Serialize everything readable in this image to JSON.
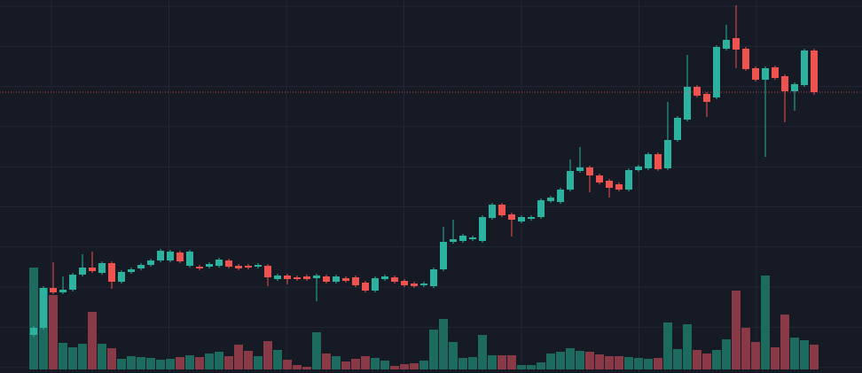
{
  "chart_data": {
    "type": "candlestick",
    "up_color": "#2bb39f",
    "down_color": "#ef5350",
    "volume_up_color": "#1d6b5f",
    "volume_down_color": "#8a3a47",
    "price_line_color": "#ef5350",
    "grid": true,
    "ylim": [
      0,
      421
    ],
    "volume_ylim": [
      0,
      417
    ],
    "price_line": 317,
    "open": [
      43,
      51,
      96,
      91,
      94,
      111,
      119,
      113,
      124,
      103,
      114,
      118,
      122,
      127,
      127,
      136,
      121,
      120,
      120,
      121,
      127,
      121,
      121,
      120,
      121,
      106,
      110,
      108,
      109,
      107,
      109,
      103,
      107,
      108,
      102,
      93,
      106,
      108,
      104,
      101,
      99,
      98,
      117,
      148,
      149,
      151,
      149,
      175,
      190,
      179,
      171,
      174,
      176,
      194,
      193,
      207,
      228,
      232,
      223,
      217,
      213,
      207,
      229,
      231,
      247,
      231,
      263,
      286,
      323,
      315,
      311,
      366,
      378,
      366,
      344,
      331,
      345,
      335,
      318,
      325,
      364
    ],
    "high": [
      53,
      98,
      125,
      109,
      113,
      134,
      137,
      126,
      126,
      116,
      119,
      124,
      129,
      140,
      139,
      138,
      139,
      122,
      125,
      130,
      129,
      123,
      123,
      124,
      123,
      112,
      112,
      110,
      111,
      112,
      111,
      111,
      109,
      110,
      104,
      109,
      111,
      110,
      106,
      103,
      103,
      119,
      165,
      173,
      157,
      155,
      178,
      192,
      192,
      181,
      178,
      178,
      197,
      200,
      209,
      241,
      255,
      234,
      225,
      219,
      215,
      231,
      235,
      249,
      249,
      306,
      290,
      359,
      325,
      317,
      370,
      393,
      415,
      368,
      346,
      346,
      347,
      337,
      328,
      366,
      366
    ],
    "low": [
      41,
      49,
      89,
      89,
      92,
      109,
      113,
      111,
      95,
      101,
      112,
      116,
      120,
      125,
      125,
      124,
      119,
      116,
      118,
      119,
      118,
      116,
      117,
      118,
      98,
      104,
      100,
      104,
      104,
      81,
      101,
      101,
      102,
      97,
      91,
      91,
      104,
      101,
      97,
      96,
      97,
      96,
      115,
      146,
      147,
      149,
      147,
      173,
      176,
      154,
      169,
      172,
      174,
      192,
      191,
      205,
      226,
      204,
      213,
      198,
      205,
      205,
      227,
      229,
      228,
      229,
      261,
      284,
      311,
      289,
      309,
      364,
      344,
      341,
      329,
      244,
      331,
      283,
      296,
      323,
      314
    ],
    "close": [
      51,
      96,
      91,
      94,
      111,
      119,
      115,
      124,
      103,
      114,
      117,
      122,
      127,
      138,
      137,
      126,
      137,
      118,
      123,
      128,
      120,
      118,
      119,
      122,
      108,
      110,
      106,
      106,
      106,
      110,
      103,
      109,
      104,
      99,
      93,
      107,
      109,
      103,
      99,
      98,
      101,
      117,
      148,
      151,
      155,
      153,
      176,
      190,
      178,
      173,
      176,
      176,
      195,
      198,
      207,
      228,
      232,
      223,
      215,
      209,
      207,
      229,
      233,
      247,
      230,
      263,
      288,
      323,
      313,
      306,
      368,
      376,
      365,
      343,
      331,
      344,
      333,
      318,
      326,
      364,
      317
    ],
    "volume": [
      115,
      92,
      84,
      30,
      25,
      29,
      65,
      29,
      24,
      12,
      15,
      14,
      13,
      11,
      12,
      14,
      16,
      14,
      18,
      20,
      15,
      28,
      21,
      15,
      32,
      22,
      11,
      5,
      3,
      42,
      18,
      15,
      9,
      12,
      15,
      13,
      10,
      4,
      6,
      7,
      10,
      45,
      57,
      31,
      13,
      14,
      39,
      16,
      16,
      16,
      5,
      5,
      8,
      18,
      20,
      24,
      21,
      20,
      17,
      15,
      15,
      14,
      13,
      12,
      13,
      53,
      23,
      51,
      22,
      18,
      22,
      34,
      89,
      47,
      31,
      106,
      25,
      62,
      36,
      33,
      28
    ]
  }
}
